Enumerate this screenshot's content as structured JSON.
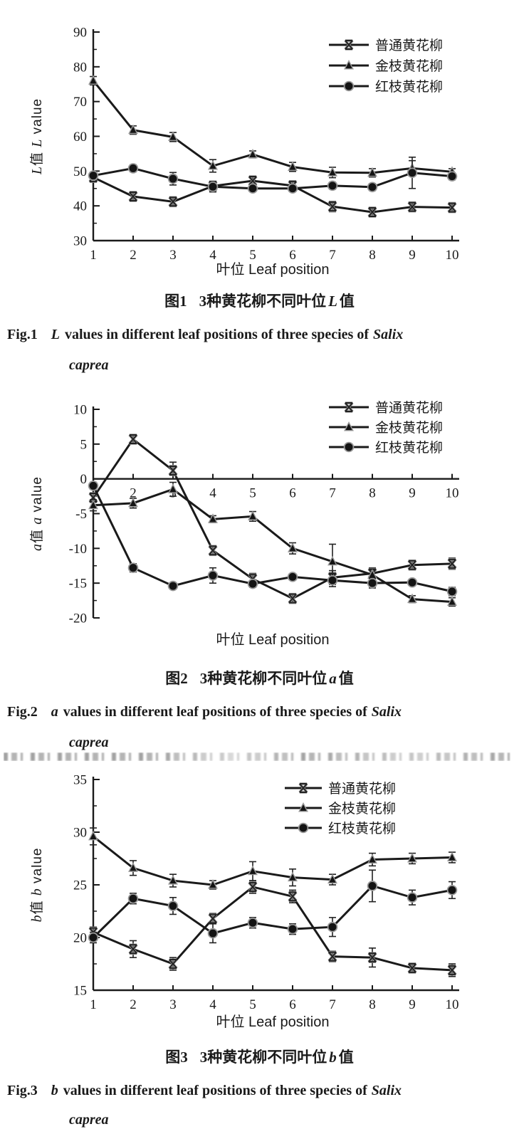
{
  "colors": {
    "ink": "#1a1a1a",
    "marker_fill": "#141414",
    "marker_halo": "#9a9a9a",
    "background": "#ffffff"
  },
  "figures": [
    {
      "caption_zh": {
        "fig": "图1",
        "pre": "3种黄花柳不同叶位",
        "var": "L",
        "post": "值"
      },
      "caption_en": {
        "fig": "Fig.1",
        "var": "L",
        "text": "values in different leaf positions of three species of",
        "species": "Salix",
        "line2": "caprea"
      }
    },
    {
      "caption_zh": {
        "fig": "图2",
        "pre": "3种黄花柳不同叶位",
        "var": "a",
        "post": "值"
      },
      "caption_en": {
        "fig": "Fig.2",
        "var": "a",
        "text": "values in different leaf positions of three species of",
        "species": "Salix",
        "line2": "caprea"
      }
    },
    {
      "caption_zh": {
        "fig": "图3",
        "pre": "3种黄花柳不同叶位",
        "var": "b",
        "post": "值"
      },
      "caption_en": {
        "fig": "Fig.3",
        "var": "b",
        "text": "values in different leaf positions of three species of",
        "species": "Salix",
        "line2": "caprea"
      }
    }
  ],
  "chart_data": [
    {
      "type": "line",
      "title": "图1 3种黄花柳不同叶位L值",
      "x": [
        1,
        2,
        3,
        4,
        5,
        6,
        7,
        8,
        9,
        10
      ],
      "xlabel": "叶位 Leaf position",
      "ylabel": "L值 L value",
      "ylabel_parts": {
        "var": "L",
        "zh": "值",
        "en": "value"
      },
      "ylim": [
        30,
        90
      ],
      "ytick_major": 10,
      "ytick_minor": 5,
      "x_axis_at": 30,
      "x_tick_labels": [
        1,
        2,
        3,
        4,
        5,
        6,
        7,
        8,
        9,
        10
      ],
      "grid": false,
      "legend_position": "top-right",
      "series": [
        {
          "name": "普通黄花柳",
          "marker": "x",
          "values": [
            48.2,
            42.7,
            41.2,
            45.7,
            47.2,
            45.8,
            39.8,
            38.2,
            39.7,
            39.5
          ],
          "errors": [
            1.2,
            0.8,
            1.0,
            1.2,
            0.8,
            1.3,
            1.5,
            1.2,
            0.8,
            0.8
          ]
        },
        {
          "name": "金枝黄花柳",
          "marker": "triangle",
          "values": [
            76.0,
            61.8,
            59.8,
            51.5,
            54.8,
            51.2,
            49.6,
            49.5,
            50.8,
            49.8
          ],
          "errors": [
            1.2,
            1.2,
            1.3,
            1.8,
            1.0,
            1.3,
            1.5,
            1.2,
            2.2,
            0.9
          ]
        },
        {
          "name": "红枝黄花柳",
          "marker": "circle",
          "values": [
            48.7,
            50.8,
            47.8,
            45.5,
            45.0,
            45.0,
            45.8,
            45.4,
            49.5,
            48.5
          ],
          "errors": [
            1.0,
            1.0,
            1.8,
            1.5,
            0.8,
            0.8,
            1.0,
            1.0,
            4.5,
            1.0
          ]
        }
      ]
    },
    {
      "type": "line",
      "title": "图2 3种黄花柳不同叶位a值",
      "x": [
        1,
        2,
        3,
        4,
        5,
        6,
        7,
        8,
        9,
        10
      ],
      "xlabel": "叶位 Leaf position",
      "ylabel": "a值 a value",
      "ylabel_parts": {
        "var": "a",
        "zh": "值",
        "en": "value"
      },
      "ylim": [
        -20,
        10
      ],
      "ytick_major": 5,
      "ytick_minor": 2.5,
      "x_axis_at": 0,
      "x_tick_labels": [
        2,
        3,
        4,
        5,
        6,
        7,
        8,
        9,
        10
      ],
      "grid": false,
      "legend_position": "top-right",
      "series": [
        {
          "name": "普通黄花柳",
          "marker": "x",
          "values": [
            -2.7,
            5.7,
            1.2,
            -10.3,
            -14.4,
            -17.2,
            -14.2,
            -13.6,
            -12.4,
            -12.2
          ],
          "errors": [
            1.5,
            0.5,
            1.2,
            0.6,
            0.8,
            0.4,
            1.0,
            0.8,
            0.6,
            0.8
          ]
        },
        {
          "name": "金枝黄花柳",
          "marker": "triangle",
          "values": [
            -3.8,
            -3.5,
            -1.5,
            -5.8,
            -5.4,
            -10.0,
            -11.9,
            -13.8,
            -17.3,
            -17.7
          ],
          "errors": [
            0.8,
            0.7,
            1.0,
            0.5,
            0.7,
            0.8,
            2.5,
            0.7,
            0.5,
            0.6
          ]
        },
        {
          "name": "红枝黄花柳",
          "marker": "circle",
          "values": [
            -1.0,
            -12.8,
            -15.4,
            -13.9,
            -15.1,
            -14.1,
            -14.6,
            -15.0,
            -14.9,
            -16.2
          ],
          "errors": [
            0.5,
            0.6,
            0.4,
            1.1,
            0.5,
            0.4,
            0.9,
            0.7,
            0.4,
            0.6
          ]
        }
      ]
    },
    {
      "type": "line",
      "title": "图3 3种黄花柳不同叶位b值",
      "x": [
        1,
        2,
        3,
        4,
        5,
        6,
        7,
        8,
        9,
        10
      ],
      "xlabel": "叶位 Leaf position",
      "ylabel": "b值 b value",
      "ylabel_parts": {
        "var": "b",
        "zh": "值",
        "en": "value"
      },
      "ylim": [
        15,
        35
      ],
      "ytick_major": 5,
      "ytick_minor": 2.5,
      "x_axis_at": 15,
      "x_tick_labels": [
        1,
        2,
        3,
        4,
        5,
        6,
        7,
        8,
        9,
        10
      ],
      "grid": false,
      "legend_position": "top-right",
      "series": [
        {
          "name": "普通黄花柳",
          "marker": "x",
          "values": [
            20.5,
            18.9,
            17.5,
            21.8,
            24.8,
            23.9,
            18.2,
            18.1,
            17.1,
            16.9
          ],
          "errors": [
            0.5,
            0.8,
            0.6,
            0.5,
            0.6,
            0.6,
            0.5,
            0.9,
            0.4,
            0.6
          ]
        },
        {
          "name": "金枝黄花柳",
          "marker": "triangle",
          "values": [
            29.6,
            26.6,
            25.4,
            25.0,
            26.3,
            25.7,
            25.5,
            27.4,
            27.5,
            27.6
          ],
          "errors": [
            0.8,
            0.7,
            0.6,
            0.4,
            0.9,
            0.8,
            0.5,
            0.6,
            0.5,
            0.5
          ]
        },
        {
          "name": "红枝黄花柳",
          "marker": "circle",
          "values": [
            20.0,
            23.7,
            23.0,
            20.4,
            21.4,
            20.8,
            21.0,
            24.9,
            23.8,
            24.5
          ],
          "errors": [
            0.5,
            0.5,
            0.8,
            0.9,
            0.5,
            0.5,
            0.9,
            1.5,
            0.7,
            0.8
          ]
        }
      ]
    }
  ]
}
